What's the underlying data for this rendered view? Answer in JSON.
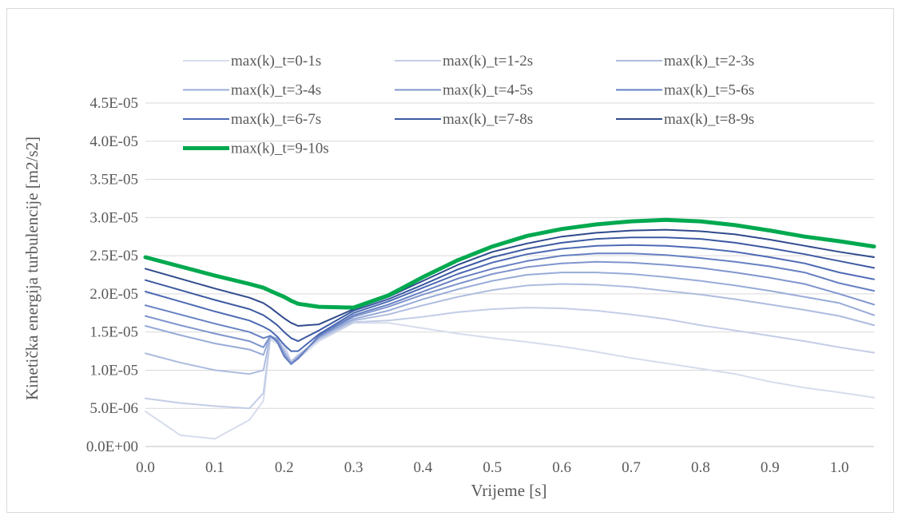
{
  "chart_data": {
    "type": "line",
    "title": "",
    "xlabel": "Vrijeme [s]",
    "ylabel": "Kinetička energija turbulencije [m2/s2]",
    "xlim": [
      0,
      1.05
    ],
    "ylim": [
      0,
      4.5e-05
    ],
    "x_ticks": [
      "0.0",
      "0.1",
      "0.2",
      "0.3",
      "0.4",
      "0.5",
      "0.6",
      "0.7",
      "0.8",
      "0.9",
      "1.0"
    ],
    "y_ticks": [
      "0.0E+00",
      "5.0E-06",
      "1.0E-05",
      "1.5E-05",
      "2.0E-05",
      "2.5E-05",
      "3.0E-05",
      "3.5E-05",
      "4.0E-05",
      "4.5E-05"
    ],
    "grid": "horizontal",
    "legend_position": "top",
    "x": [
      0,
      0.05,
      0.1,
      0.15,
      0.17,
      0.18,
      0.19,
      0.2,
      0.21,
      0.22,
      0.25,
      0.3,
      0.35,
      0.4,
      0.45,
      0.5,
      0.55,
      0.6,
      0.65,
      0.7,
      0.75,
      0.8,
      0.85,
      0.9,
      0.95,
      1.0,
      1.05
    ],
    "series": [
      {
        "name": "max(k)_t=0-1s",
        "color": "#d6dcec",
        "width": 2,
        "values": [
          4.6e-06,
          1.5e-06,
          1e-06,
          3.5e-06,
          6e-06,
          1.4e-05,
          1.35e-05,
          1.35e-05,
          1.1e-05,
          1.15e-05,
          1.38e-05,
          1.62e-05,
          1.62e-05,
          1.55e-05,
          1.48e-05,
          1.42e-05,
          1.37e-05,
          1.31e-05,
          1.24e-05,
          1.16e-05,
          1.09e-05,
          1.02e-05,
          9.5e-06,
          8.5e-06,
          7.7e-06,
          7.1e-06,
          6.4e-06
        ]
      },
      {
        "name": "max(k)_t=1-2s",
        "color": "#c3cde6",
        "width": 2,
        "values": [
          6.3e-06,
          5.7e-06,
          5.3e-06,
          5e-06,
          7e-06,
          1.42e-05,
          1.4e-05,
          1.28e-05,
          1.12e-05,
          1.2e-05,
          1.4e-05,
          1.63e-05,
          1.65e-05,
          1.7e-05,
          1.76e-05,
          1.8e-05,
          1.82e-05,
          1.81e-05,
          1.78e-05,
          1.73e-05,
          1.67e-05,
          1.59e-05,
          1.52e-05,
          1.45e-05,
          1.38e-05,
          1.3e-05,
          1.23e-05
        ]
      },
      {
        "name": "max(k)_t=2-3s",
        "color": "#aebce0",
        "width": 2,
        "values": [
          1.22e-05,
          1.1e-05,
          1e-05,
          9.5e-06,
          1e-05,
          1.44e-05,
          1.42e-05,
          1.25e-05,
          1.1e-05,
          1.18e-05,
          1.42e-05,
          1.65e-05,
          1.73e-05,
          1.85e-05,
          1.96e-05,
          2.05e-05,
          2.11e-05,
          2.13e-05,
          2.12e-05,
          2.09e-05,
          2.04e-05,
          1.99e-05,
          1.93e-05,
          1.86e-05,
          1.79e-05,
          1.71e-05,
          1.59e-05
        ]
      },
      {
        "name": "max(k)_t=3-4s",
        "color": "#98abd8",
        "width": 2,
        "values": [
          1.58e-05,
          1.46e-05,
          1.35e-05,
          1.27e-05,
          1.2e-05,
          1.45e-05,
          1.4e-05,
          1.22e-05,
          1.09e-05,
          1.17e-05,
          1.43e-05,
          1.67e-05,
          1.78e-05,
          1.93e-05,
          2.06e-05,
          2.17e-05,
          2.25e-05,
          2.28e-05,
          2.28e-05,
          2.26e-05,
          2.22e-05,
          2.17e-05,
          2.11e-05,
          2.04e-05,
          1.96e-05,
          1.88e-05,
          1.72e-05
        ]
      },
      {
        "name": "max(k)_t=4-5s",
        "color": "#7f95cd",
        "width": 2,
        "values": [
          1.71e-05,
          1.59e-05,
          1.48e-05,
          1.38e-05,
          1.3e-05,
          1.45e-05,
          1.39e-05,
          1.2e-05,
          1.08e-05,
          1.16e-05,
          1.44e-05,
          1.7e-05,
          1.83e-05,
          1.99e-05,
          2.13e-05,
          2.26e-05,
          2.35e-05,
          2.4e-05,
          2.42e-05,
          2.41e-05,
          2.38e-05,
          2.34e-05,
          2.28e-05,
          2.21e-05,
          2.13e-05,
          2e-05,
          1.86e-05
        ]
      },
      {
        "name": "max(k)_t=5-6s",
        "color": "#6680c2",
        "width": 2,
        "values": [
          1.85e-05,
          1.73e-05,
          1.61e-05,
          1.5e-05,
          1.42e-05,
          1.45e-05,
          1.37e-05,
          1.18e-05,
          1.08e-05,
          1.15e-05,
          1.45e-05,
          1.72e-05,
          1.86e-05,
          2.03e-05,
          2.2e-05,
          2.33e-05,
          2.43e-05,
          2.5e-05,
          2.53e-05,
          2.53e-05,
          2.51e-05,
          2.47e-05,
          2.42e-05,
          2.36e-05,
          2.28e-05,
          2.14e-05,
          2.04e-05
        ]
      },
      {
        "name": "max(k)_t=6-7s",
        "color": "#4c6ab4",
        "width": 2,
        "values": [
          2.03e-05,
          1.9e-05,
          1.77e-05,
          1.65e-05,
          1.57e-05,
          1.52e-05,
          1.44e-05,
          1.33e-05,
          1.25e-05,
          1.25e-05,
          1.47e-05,
          1.75e-05,
          1.9e-05,
          2.08e-05,
          2.26e-05,
          2.41e-05,
          2.52e-05,
          2.59e-05,
          2.63e-05,
          2.64e-05,
          2.63e-05,
          2.6e-05,
          2.55e-05,
          2.48e-05,
          2.4e-05,
          2.28e-05,
          2.19e-05
        ]
      },
      {
        "name": "max(k)_t=7-8s",
        "color": "#3c5aa2",
        "width": 2,
        "values": [
          2.18e-05,
          2.05e-05,
          1.92e-05,
          1.8e-05,
          1.72e-05,
          1.66e-05,
          1.59e-05,
          1.5e-05,
          1.42e-05,
          1.38e-05,
          1.52e-05,
          1.78e-05,
          1.93e-05,
          2.12e-05,
          2.32e-05,
          2.48e-05,
          2.59e-05,
          2.67e-05,
          2.72e-05,
          2.74e-05,
          2.74e-05,
          2.72e-05,
          2.67e-05,
          2.6e-05,
          2.52e-05,
          2.43e-05,
          2.34e-05
        ]
      },
      {
        "name": "max(k)_t=8-9s",
        "color": "#2f4a8c",
        "width": 2,
        "values": [
          2.33e-05,
          2.2e-05,
          2.07e-05,
          1.95e-05,
          1.88e-05,
          1.82e-05,
          1.75e-05,
          1.68e-05,
          1.62e-05,
          1.58e-05,
          1.6e-05,
          1.8e-05,
          1.96e-05,
          2.17e-05,
          2.38e-05,
          2.55e-05,
          2.66e-05,
          2.75e-05,
          2.8e-05,
          2.83e-05,
          2.84e-05,
          2.82e-05,
          2.78e-05,
          2.71e-05,
          2.63e-05,
          2.55e-05,
          2.48e-05
        ]
      },
      {
        "name": "max(k)_t=9-10s",
        "color": "#00a94f",
        "width": 5,
        "values": [
          2.48e-05,
          2.36e-05,
          2.24e-05,
          2.13e-05,
          2.08e-05,
          2.04e-05,
          2e-05,
          1.96e-05,
          1.91e-05,
          1.87e-05,
          1.83e-05,
          1.82e-05,
          1.98e-05,
          2.22e-05,
          2.44e-05,
          2.62e-05,
          2.76e-05,
          2.85e-05,
          2.91e-05,
          2.95e-05,
          2.97e-05,
          2.95e-05,
          2.9e-05,
          2.83e-05,
          2.75e-05,
          2.69e-05,
          2.62e-05
        ]
      }
    ]
  }
}
